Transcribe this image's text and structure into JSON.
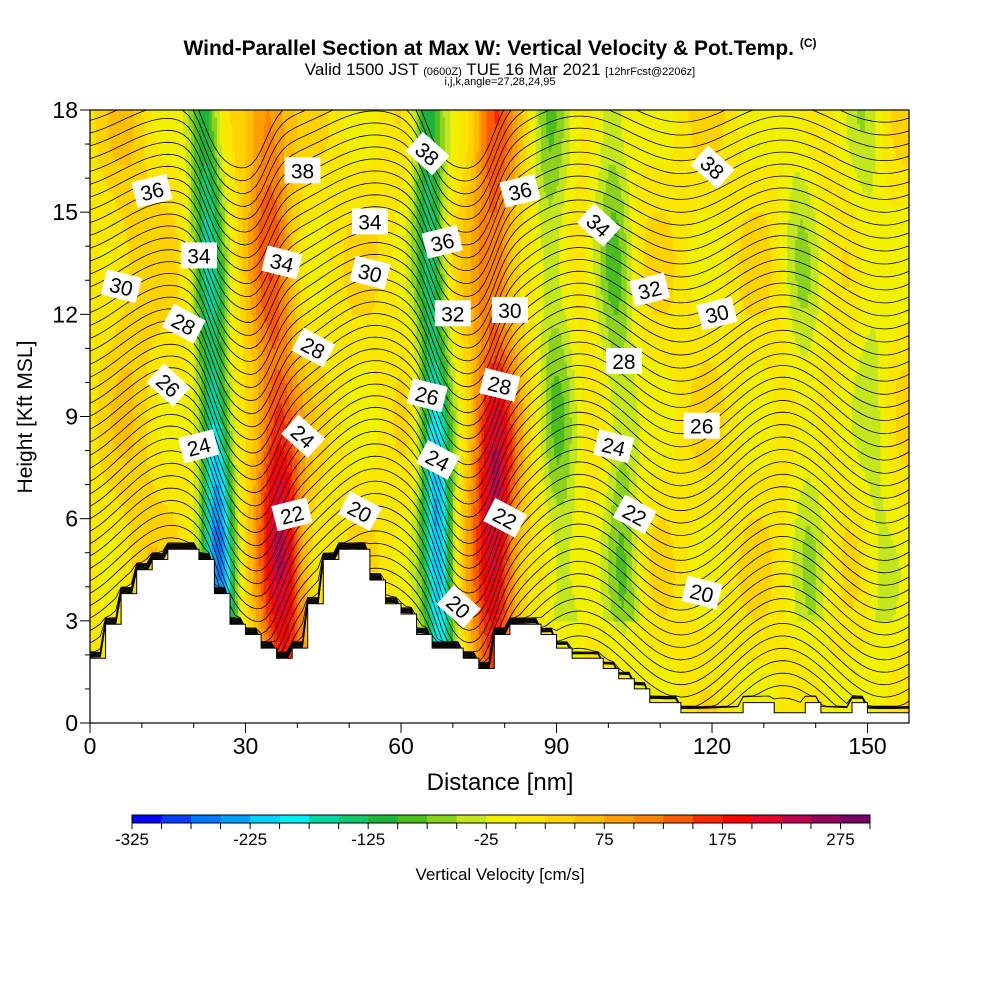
{
  "header": {
    "title_main": "Wind-Parallel Section at Max W: Vertical Velocity & Pot.Temp.",
    "title_units": "(C)",
    "valid_prefix": "Valid 1500 JST",
    "valid_utc": "(0600Z)",
    "valid_date": "TUE 16 Mar 2021",
    "forecast_info": "[12hrFcst@2206z]",
    "indices": "i,j,k,angle=27,28,24,95"
  },
  "chart_data": {
    "type": "heatmap",
    "title": "Wind-Parallel Section at Max W: Vertical Velocity & Pot.Temp.",
    "xlabel": "Distance [nm]",
    "ylabel": "Height [Kft MSL]",
    "xlim": [
      0,
      158
    ],
    "ylim": [
      0,
      18
    ],
    "xticks": [
      0,
      30,
      60,
      90,
      120,
      150
    ],
    "yticks": [
      0,
      3,
      6,
      9,
      12,
      15,
      18
    ],
    "colorbar": {
      "label": "Vertical Velocity [cm/s]",
      "min": -325,
      "max": 300,
      "step": 25,
      "tick_values": [
        -325,
        -225,
        -125,
        -25,
        75,
        175,
        275
      ],
      "colors": [
        "#0000ff",
        "#0a3cff",
        "#0078ff",
        "#00a0ff",
        "#00d2ff",
        "#00f0f0",
        "#00d7a5",
        "#14c86e",
        "#1eb43c",
        "#4bbe1e",
        "#8cd21e",
        "#c3e61e",
        "#f0f000",
        "#fae600",
        "#ffd200",
        "#ffbe00",
        "#ffa000",
        "#ff8200",
        "#ff5a00",
        "#ff2800",
        "#ff0000",
        "#e6002d",
        "#be0050",
        "#96005a",
        "#780064"
      ]
    },
    "updraft_ridges": [
      {
        "x_bottom": 38,
        "x_top": 34,
        "w_peak": 210
      },
      {
        "x_bottom": 78,
        "x_top": 78,
        "w_peak": 220
      }
    ],
    "downdraft_troughs": [
      {
        "x_bottom": 26,
        "x_top": 22,
        "w_peak": -250
      },
      {
        "x_bottom": 68,
        "x_top": 65,
        "w_peak": -240
      }
    ],
    "terrain_height_kft": [
      [
        0,
        1.9
      ],
      [
        3,
        1.9
      ],
      [
        3,
        2.9
      ],
      [
        6,
        2.9
      ],
      [
        6,
        3.8
      ],
      [
        9,
        3.8
      ],
      [
        9,
        4.5
      ],
      [
        12,
        4.5
      ],
      [
        12,
        4.8
      ],
      [
        15,
        4.8
      ],
      [
        15,
        5.1
      ],
      [
        21,
        5.1
      ],
      [
        21,
        4.8
      ],
      [
        24,
        4.8
      ],
      [
        24,
        3.8
      ],
      [
        27,
        3.8
      ],
      [
        27,
        2.9
      ],
      [
        30,
        2.9
      ],
      [
        30,
        2.6
      ],
      [
        33,
        2.6
      ],
      [
        33,
        2.2
      ],
      [
        36,
        2.2
      ],
      [
        36,
        1.9
      ],
      [
        39,
        1.9
      ],
      [
        39,
        2.2
      ],
      [
        42,
        2.2
      ],
      [
        42,
        3.5
      ],
      [
        45,
        3.5
      ],
      [
        45,
        4.8
      ],
      [
        48,
        4.8
      ],
      [
        48,
        5.1
      ],
      [
        54,
        5.1
      ],
      [
        54,
        4.2
      ],
      [
        57,
        4.2
      ],
      [
        57,
        3.5
      ],
      [
        60,
        3.5
      ],
      [
        60,
        3.2
      ],
      [
        63,
        3.2
      ],
      [
        63,
        2.6
      ],
      [
        66,
        2.6
      ],
      [
        66,
        2.2
      ],
      [
        72,
        2.2
      ],
      [
        72,
        1.9
      ],
      [
        75,
        1.9
      ],
      [
        75,
        1.6
      ],
      [
        78,
        1.6
      ],
      [
        78,
        2.6
      ],
      [
        81,
        2.6
      ],
      [
        81,
        2.9
      ],
      [
        87,
        2.9
      ],
      [
        87,
        2.6
      ],
      [
        90,
        2.6
      ],
      [
        90,
        2.2
      ],
      [
        93,
        2.2
      ],
      [
        93,
        1.9
      ],
      [
        99,
        1.9
      ],
      [
        99,
        1.6
      ],
      [
        102,
        1.6
      ],
      [
        102,
        1.3
      ],
      [
        105,
        1.3
      ],
      [
        105,
        1.0
      ],
      [
        108,
        1.0
      ],
      [
        108,
        0.6
      ],
      [
        114,
        0.6
      ],
      [
        114,
        0.3
      ],
      [
        126,
        0.3
      ],
      [
        126,
        0.6
      ],
      [
        132,
        0.6
      ],
      [
        132,
        0.3
      ],
      [
        138,
        0.3
      ],
      [
        138,
        0.6
      ],
      [
        141,
        0.6
      ],
      [
        141,
        0.3
      ],
      [
        147,
        0.3
      ],
      [
        147,
        0.6
      ],
      [
        150,
        0.6
      ],
      [
        150,
        0.3
      ],
      [
        158,
        0.3
      ]
    ],
    "theta_contours": {
      "label": "Pot.Temp.",
      "units": "C",
      "labels": [
        {
          "text": "36",
          "x": 12,
          "y": 15.6
        },
        {
          "text": "34",
          "x": 21,
          "y": 13.7
        },
        {
          "text": "30",
          "x": 6,
          "y": 12.8
        },
        {
          "text": "28",
          "x": 18,
          "y": 11.7
        },
        {
          "text": "26",
          "x": 15,
          "y": 9.9
        },
        {
          "text": "24",
          "x": 21,
          "y": 8.1
        },
        {
          "text": "38",
          "x": 41,
          "y": 16.2
        },
        {
          "text": "34",
          "x": 37,
          "y": 13.5
        },
        {
          "text": "28",
          "x": 43,
          "y": 11.0
        },
        {
          "text": "24",
          "x": 41,
          "y": 8.4
        },
        {
          "text": "22",
          "x": 39,
          "y": 6.1
        },
        {
          "text": "34",
          "x": 54,
          "y": 14.7
        },
        {
          "text": "30",
          "x": 54,
          "y": 13.2
        },
        {
          "text": "20",
          "x": 52,
          "y": 6.2
        },
        {
          "text": "38",
          "x": 65,
          "y": 16.7
        },
        {
          "text": "36",
          "x": 68,
          "y": 14.1
        },
        {
          "text": "32",
          "x": 70,
          "y": 12.0
        },
        {
          "text": "26",
          "x": 65,
          "y": 9.6
        },
        {
          "text": "24",
          "x": 67,
          "y": 7.7
        },
        {
          "text": "20",
          "x": 71,
          "y": 3.4
        },
        {
          "text": "36",
          "x": 83,
          "y": 15.6
        },
        {
          "text": "30",
          "x": 81,
          "y": 12.1
        },
        {
          "text": "28",
          "x": 79,
          "y": 9.9
        },
        {
          "text": "22",
          "x": 80,
          "y": 6.0
        },
        {
          "text": "34",
          "x": 98,
          "y": 14.6
        },
        {
          "text": "32",
          "x": 108,
          "y": 12.7
        },
        {
          "text": "28",
          "x": 103,
          "y": 10.6
        },
        {
          "text": "24",
          "x": 101,
          "y": 8.1
        },
        {
          "text": "22",
          "x": 105,
          "y": 6.1
        },
        {
          "text": "38",
          "x": 120,
          "y": 16.3
        },
        {
          "text": "30",
          "x": 121,
          "y": 12.0
        },
        {
          "text": "26",
          "x": 118,
          "y": 8.7
        },
        {
          "text": "20",
          "x": 118,
          "y": 3.8
        }
      ]
    }
  }
}
